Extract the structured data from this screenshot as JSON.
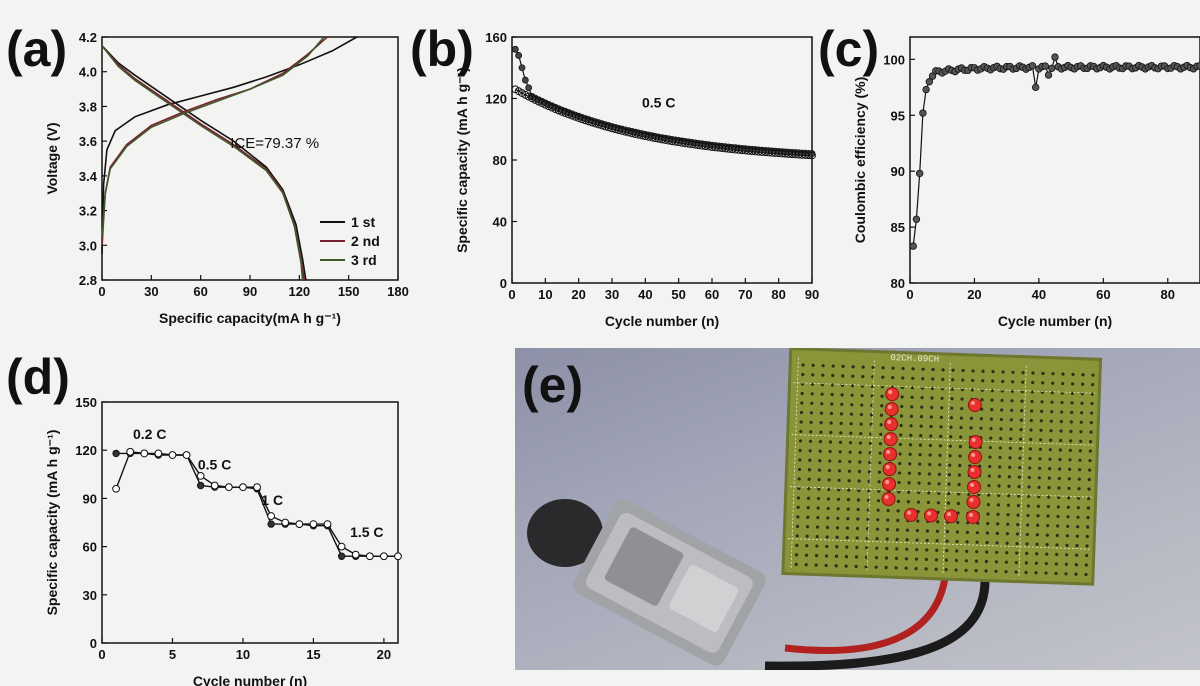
{
  "panels": {
    "a": {
      "label": "(a)"
    },
    "b": {
      "label": "(b)"
    },
    "c": {
      "label": "(c)"
    },
    "d": {
      "label": "(d)"
    },
    "e": {
      "label": "(e)"
    }
  },
  "photo": {
    "board_text": "02CH.09CH",
    "led_color": "#e8302e",
    "board_color": "#8a9438"
  },
  "chart_data": [
    {
      "id": "a",
      "type": "line",
      "xlabel": "Specific capacity(mA h g⁻¹)",
      "ylabel": "Voltage (V)",
      "xlim": [
        0,
        180
      ],
      "ylim": [
        2.8,
        4.2
      ],
      "xticks": [
        "0",
        "30",
        "60",
        "90",
        "120",
        "150",
        "180"
      ],
      "yticks": [
        "2.8",
        "3.0",
        "3.2",
        "3.4",
        "3.6",
        "3.8",
        "4.0",
        "4.2"
      ],
      "annotation": "ICE=79.37 %",
      "legend": "bottom-right",
      "series": [
        {
          "name": "1 st",
          "color": "#111111",
          "charge": [
            [
              0,
              2.95
            ],
            [
              1,
              3.35
            ],
            [
              3,
              3.55
            ],
            [
              8,
              3.66
            ],
            [
              20,
              3.74
            ],
            [
              40,
              3.81
            ],
            [
              60,
              3.86
            ],
            [
              80,
              3.91
            ],
            [
              100,
              3.97
            ],
            [
              120,
              4.04
            ],
            [
              140,
              4.12
            ],
            [
              155,
              4.2
            ]
          ],
          "discharge": [
            [
              0,
              4.15
            ],
            [
              10,
              4.05
            ],
            [
              20,
              3.98
            ],
            [
              40,
              3.85
            ],
            [
              60,
              3.72
            ],
            [
              80,
              3.6
            ],
            [
              100,
              3.45
            ],
            [
              110,
              3.32
            ],
            [
              118,
              3.12
            ],
            [
              122,
              2.92
            ],
            [
              124,
              2.8
            ]
          ]
        },
        {
          "name": "2 nd",
          "color": "#7a2030",
          "charge": [
            [
              0,
              3.0
            ],
            [
              2,
              3.3
            ],
            [
              5,
              3.45
            ],
            [
              15,
              3.58
            ],
            [
              30,
              3.69
            ],
            [
              50,
              3.77
            ],
            [
              70,
              3.84
            ],
            [
              90,
              3.9
            ],
            [
              110,
              3.99
            ],
            [
              125,
              4.1
            ],
            [
              137,
              4.2
            ]
          ],
          "discharge": [
            [
              0,
              4.15
            ],
            [
              10,
              4.04
            ],
            [
              20,
              3.96
            ],
            [
              40,
              3.83
            ],
            [
              60,
              3.7
            ],
            [
              80,
              3.58
            ],
            [
              100,
              3.44
            ],
            [
              110,
              3.31
            ],
            [
              117,
              3.12
            ],
            [
              121,
              2.92
            ],
            [
              123,
              2.8
            ]
          ]
        },
        {
          "name": "3 rd",
          "color": "#3e5a2a",
          "charge": [
            [
              0,
              3.05
            ],
            [
              2,
              3.3
            ],
            [
              5,
              3.44
            ],
            [
              15,
              3.57
            ],
            [
              30,
              3.68
            ],
            [
              50,
              3.76
            ],
            [
              70,
              3.83
            ],
            [
              90,
              3.9
            ],
            [
              110,
              3.98
            ],
            [
              125,
              4.09
            ],
            [
              135,
              4.2
            ]
          ],
          "discharge": [
            [
              0,
              4.15
            ],
            [
              10,
              4.03
            ],
            [
              20,
              3.95
            ],
            [
              40,
              3.82
            ],
            [
              60,
              3.69
            ],
            [
              80,
              3.57
            ],
            [
              100,
              3.43
            ],
            [
              110,
              3.3
            ],
            [
              117,
              3.11
            ],
            [
              121,
              2.9
            ],
            [
              122,
              2.8
            ]
          ]
        }
      ]
    },
    {
      "id": "b",
      "type": "scatter",
      "xlabel": "Cycle number (n)",
      "ylabel": "Specific capacity (mA h g⁻¹)",
      "xlim": [
        0,
        90
      ],
      "ylim": [
        0,
        160
      ],
      "xticks": [
        "0",
        "10",
        "20",
        "30",
        "40",
        "50",
        "60",
        "70",
        "80",
        "90"
      ],
      "yticks": [
        "0",
        "40",
        "80",
        "120",
        "160"
      ],
      "annotation": "0.5 C",
      "charge_start": [
        152,
        148,
        140,
        132,
        127
      ],
      "discharge_start": 126,
      "end_value": 83
    },
    {
      "id": "c",
      "type": "scatter",
      "xlabel": "Cycle number (n)",
      "ylabel": "Coulombic efficiency (%)",
      "xlim": [
        0,
        90
      ],
      "ylim": [
        80,
        102
      ],
      "xticks": [
        "0",
        "20",
        "40",
        "60",
        "80"
      ],
      "yticks": [
        "80",
        "85",
        "90",
        "95",
        "100"
      ],
      "values_first": [
        83.3,
        85.7,
        89.8,
        95.2,
        97.3,
        98.0,
        98.5
      ],
      "plateau": 99.3,
      "dips": [
        [
          39,
          97.5
        ],
        [
          43,
          98.6
        ]
      ]
    },
    {
      "id": "d",
      "type": "line",
      "xlabel": "Cycle number (n)",
      "ylabel": "Specific capacity (mA h g⁻¹)",
      "xlim": [
        0,
        21
      ],
      "ylim": [
        0,
        150
      ],
      "xticks": [
        "0",
        "5",
        "10",
        "15",
        "20"
      ],
      "yticks": [
        "0",
        "30",
        "60",
        "90",
        "120",
        "150"
      ],
      "rate_labels": [
        "0.2 C",
        "0.5 C",
        "1 C",
        "1.5 C"
      ],
      "charge": [
        118,
        118,
        118,
        117,
        117,
        117,
        98,
        97,
        97,
        97,
        96,
        74,
        74,
        74,
        73,
        73,
        54,
        54,
        54,
        54,
        54
      ],
      "discharge": [
        96,
        119,
        118,
        118,
        117,
        117,
        104,
        98,
        97,
        97,
        97,
        79,
        75,
        74,
        74,
        74,
        60,
        55,
        54,
        54,
        54
      ]
    }
  ]
}
